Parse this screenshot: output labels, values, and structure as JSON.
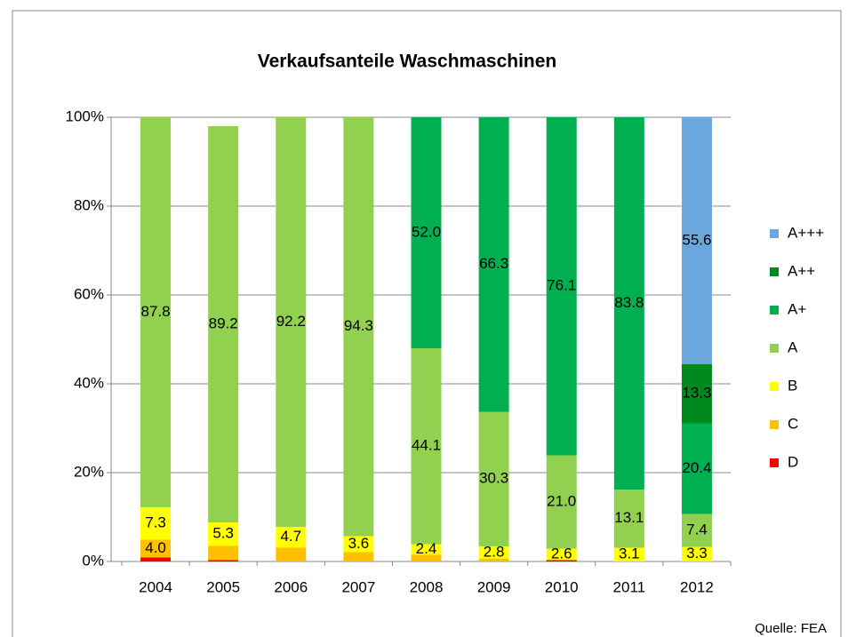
{
  "chart_data": {
    "type": "stacked_bar",
    "title": "Verkaufsanteile Waschmaschinen",
    "categories": [
      "2004",
      "2005",
      "2006",
      "2007",
      "2008",
      "2009",
      "2010",
      "2011",
      "2012"
    ],
    "series": [
      {
        "name": "D",
        "color": "#ff0000",
        "values": [
          0.9,
          0.3,
          0,
          0,
          0,
          0,
          0.3,
          0,
          0
        ],
        "value_labels": [
          null,
          null,
          null,
          null,
          null,
          null,
          null,
          null,
          null
        ]
      },
      {
        "name": "C",
        "color": "#ffc000",
        "values": [
          4.0,
          3.2,
          3.1,
          2.1,
          1.5,
          0.6,
          0,
          0,
          0
        ],
        "value_labels": [
          "4.0",
          null,
          null,
          null,
          null,
          null,
          null,
          null,
          null
        ]
      },
      {
        "name": "B",
        "color": "#ffff00",
        "values": [
          7.3,
          5.3,
          4.7,
          3.6,
          2.4,
          2.8,
          2.6,
          3.1,
          3.3
        ],
        "value_labels": [
          "7.3",
          "5.3",
          "4.7",
          "3.6",
          "2.4",
          "2.8",
          "2.6",
          "3.1",
          "3.3"
        ]
      },
      {
        "name": "A",
        "color": "#92d050",
        "values": [
          87.8,
          89.2,
          92.2,
          94.3,
          44.1,
          30.3,
          21.0,
          13.1,
          7.4
        ],
        "value_labels": [
          "87.8",
          "89.2",
          "92.2",
          "94.3",
          "44.1",
          "30.3",
          "21.0",
          "13.1",
          "7.4"
        ]
      },
      {
        "name": "A+",
        "color": "#00b050",
        "values": [
          0,
          0,
          0,
          0,
          52.0,
          66.3,
          76.1,
          83.8,
          20.4
        ],
        "value_labels": [
          null,
          null,
          null,
          null,
          "52.0",
          "66.3",
          "76.1",
          "83.8",
          "20.4"
        ]
      },
      {
        "name": "A++",
        "color": "#008a1e",
        "values": [
          0,
          0,
          0,
          0,
          0,
          0,
          0,
          0,
          13.3
        ],
        "value_labels": [
          null,
          null,
          null,
          null,
          null,
          null,
          null,
          null,
          "13.3"
        ]
      },
      {
        "name": "A+++",
        "color": "#6ca6de",
        "values": [
          0,
          0,
          0,
          0,
          0,
          0,
          0,
          0,
          55.6
        ],
        "value_labels": [
          null,
          null,
          null,
          null,
          null,
          null,
          null,
          null,
          "55.6"
        ]
      }
    ],
    "ylim": [
      0,
      100
    ],
    "yticks": [
      {
        "value": 0,
        "label": "0%"
      },
      {
        "value": 20,
        "label": "20%"
      },
      {
        "value": 40,
        "label": "40%"
      },
      {
        "value": 60,
        "label": "60%"
      },
      {
        "value": 80,
        "label": "80%"
      },
      {
        "value": 100,
        "label": "100%"
      }
    ],
    "grid": true,
    "legend": "right",
    "source": "Quelle: FEA"
  }
}
